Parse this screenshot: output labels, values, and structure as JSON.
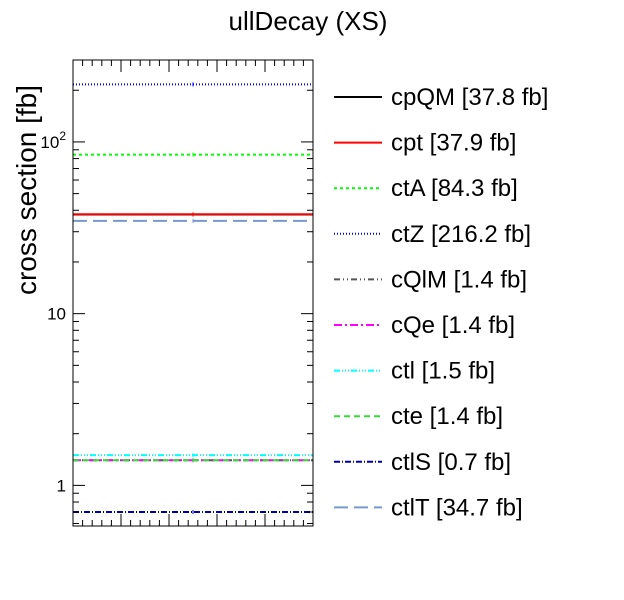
{
  "chart_data": {
    "type": "line",
    "title": "ullDecay (XS)",
    "xlabel": "",
    "ylabel": "cross section [fb]",
    "yscale": "log",
    "ylim": [
      0.58,
      300
    ],
    "yticks": [
      {
        "value": 1,
        "base": "1",
        "exp": ""
      },
      {
        "value": 10,
        "base": "10",
        "exp": ""
      },
      {
        "value": 100,
        "base": "10",
        "exp": "2"
      }
    ],
    "grid": false,
    "legend_position": "right",
    "series": [
      {
        "name": "cpQM [37.8 fb]",
        "value": 37.8,
        "color": "#000000",
        "dash": ""
      },
      {
        "name": "cpt [37.9 fb]",
        "value": 37.9,
        "color": "#ff0000",
        "dash": ""
      },
      {
        "name": "ctA [84.3 fb]",
        "value": 84.3,
        "color": "#00ff00",
        "dash": "3,3"
      },
      {
        "name": "ctZ [216.2 fb]",
        "value": 216.2,
        "color": "#0000ff",
        "dash": "1,2"
      },
      {
        "name": "cQlM [1.4 fb]",
        "value": 1.4,
        "color": "#555555",
        "dash": "6,3,1,3,1,3"
      },
      {
        "name": "cQe [1.4 fb]",
        "value": 1.4,
        "color": "#ff00ff",
        "dash": "8,3,2,3"
      },
      {
        "name": "ctl [1.5 fb]",
        "value": 1.5,
        "color": "#00ffff",
        "dash": "6,2,1,2,1,2,1,2"
      },
      {
        "name": "cte [1.4 fb]",
        "value": 1.4,
        "color": "#33dd33",
        "dash": "6,4"
      },
      {
        "name": "ctlS [0.7 fb]",
        "value": 0.7,
        "color": "#0000aa",
        "dash": "6,2,1,2"
      },
      {
        "name": "ctlT [34.7 fb]",
        "value": 34.7,
        "color": "#7799cc",
        "dash": "14,6"
      }
    ]
  }
}
